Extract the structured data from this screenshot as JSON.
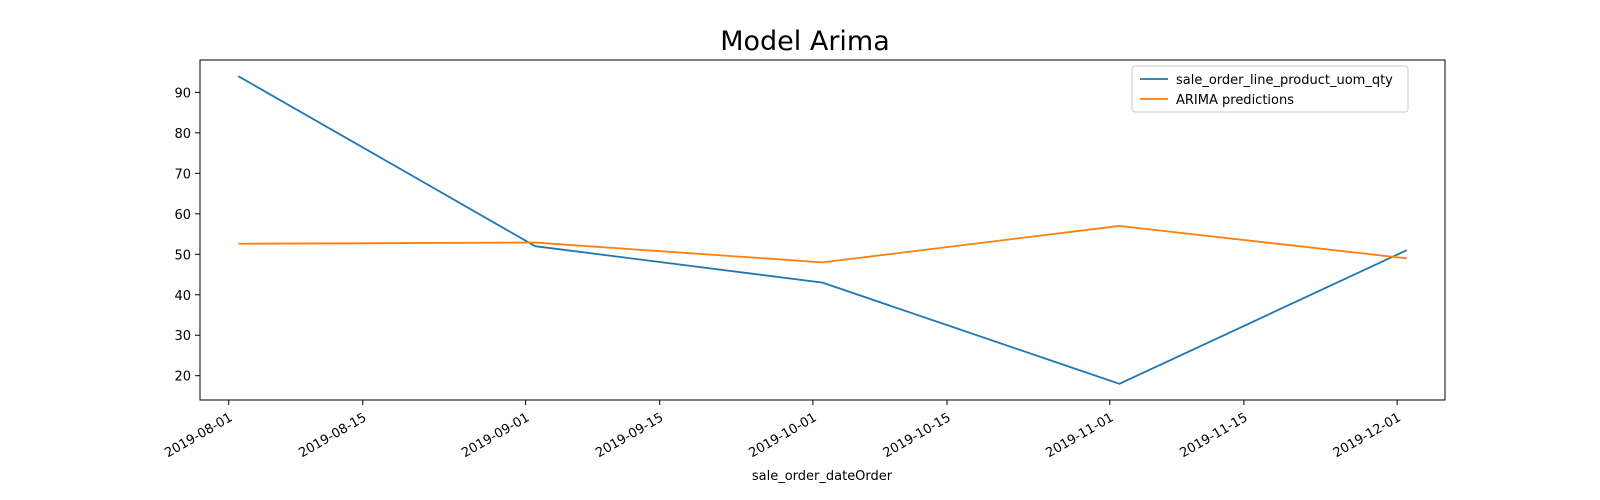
{
  "chart_data": {
    "type": "line",
    "title": "Model Arima",
    "xlabel": "sale_order_dateOrder",
    "ylabel": "",
    "x_tick_labels": [
      "2019-08-01",
      "2019-08-15",
      "2019-09-01",
      "2019-09-15",
      "2019-10-01",
      "2019-10-15",
      "2019-11-01",
      "2019-11-15",
      "2019-12-01"
    ],
    "y_ticks": [
      20,
      30,
      40,
      50,
      60,
      70,
      80,
      90
    ],
    "xlim": [
      "2019-07-29",
      "2019-12-06"
    ],
    "ylim": [
      14,
      98
    ],
    "grid": false,
    "legend_position": "top-right",
    "series": [
      {
        "name": "sale_order_line_product_uom_qty",
        "color": "#1f77b4",
        "x": [
          "2019-08-02",
          "2019-09-02",
          "2019-10-02",
          "2019-11-02",
          "2019-12-02"
        ],
        "values": [
          94,
          52,
          43,
          18,
          51
        ]
      },
      {
        "name": "ARIMA predictions",
        "color": "#ff7f0e",
        "x": [
          "2019-08-02",
          "2019-09-02",
          "2019-10-02",
          "2019-11-02",
          "2019-12-02"
        ],
        "values": [
          52.6,
          52.9,
          48,
          57,
          49
        ]
      }
    ]
  }
}
